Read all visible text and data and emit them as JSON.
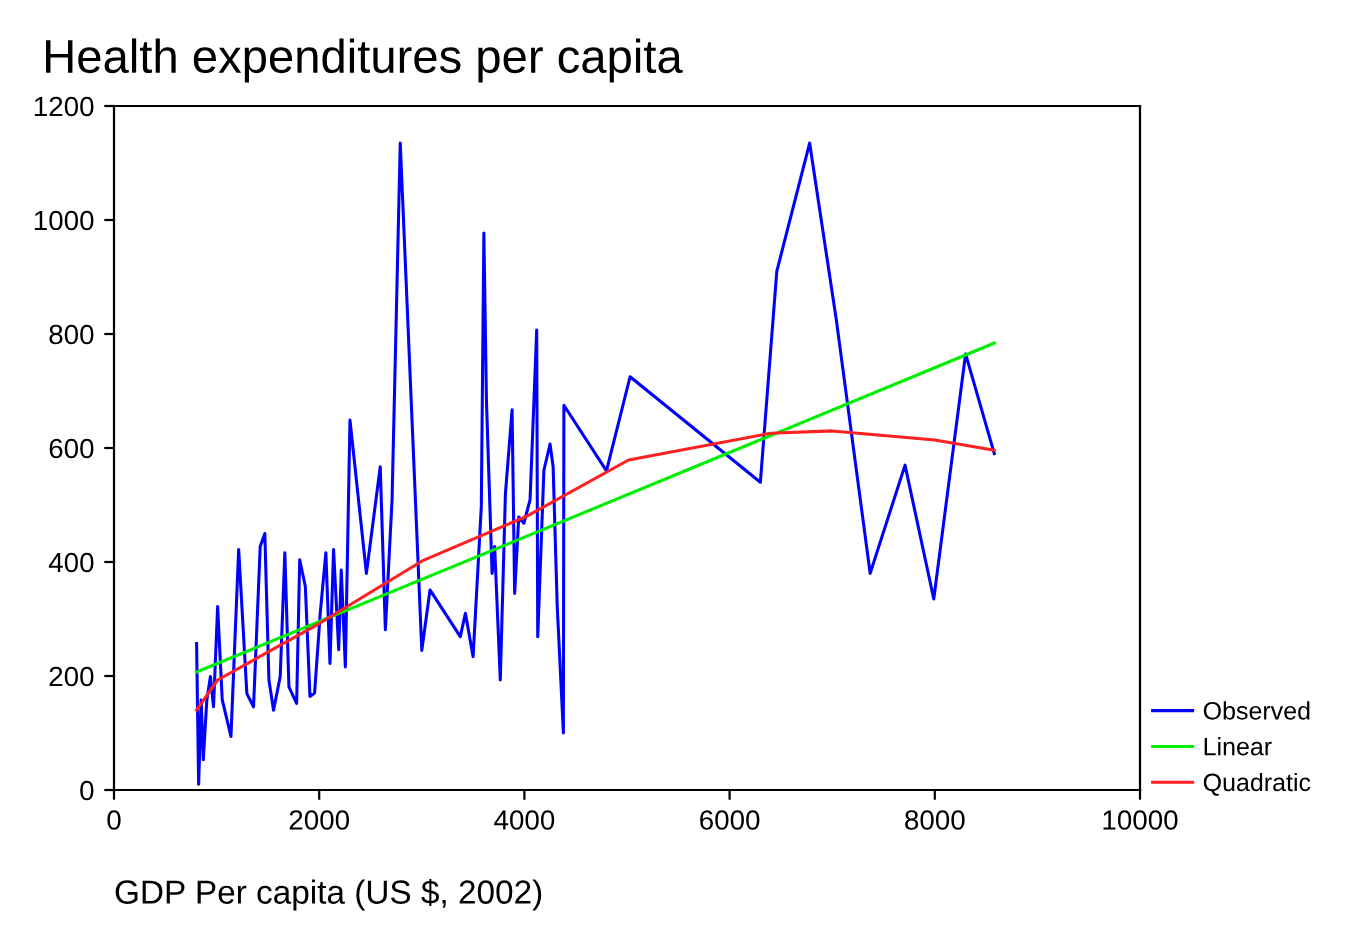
{
  "chart_data": {
    "type": "line",
    "title": "Health expenditures per capita",
    "xlabel": "GDP Per capita (US $, 2002)",
    "xlim": [
      0,
      10000
    ],
    "xticks": [
      0,
      2000,
      4000,
      6000,
      8000,
      10000
    ],
    "ylim": [
      0,
      1200
    ],
    "yticks": [
      0,
      200,
      400,
      600,
      800,
      1000,
      1200
    ],
    "grid": false,
    "legend": "bottom right",
    "marker": "none",
    "line_style": "solid",
    "series": [
      {
        "name": "Observed",
        "color": "#0000ff",
        "x": [
          805,
          825,
          850,
          870,
          905,
          940,
          970,
          1010,
          1055,
          1140,
          1215,
          1295,
          1360,
          1425,
          1470,
          1510,
          1555,
          1620,
          1665,
          1705,
          1780,
          1810,
          1865,
          1910,
          1955,
          2010,
          2065,
          2105,
          2140,
          2190,
          2215,
          2255,
          2300,
          2460,
          2595,
          2645,
          2710,
          2790,
          3000,
          3080,
          3375,
          3425,
          3500,
          3580,
          3605,
          3630,
          3685,
          3710,
          3765,
          3815,
          3880,
          3905,
          3945,
          3995,
          4055,
          4120,
          4130,
          4190,
          4250,
          4280,
          4320,
          4380,
          4385,
          4800,
          5030,
          6300,
          6460,
          6780,
          7040,
          7370,
          7710,
          7990,
          8300,
          8580
        ],
        "values": [
          257,
          10,
          158,
          53,
          158,
          199,
          146,
          322,
          158,
          94,
          422,
          169,
          146,
          427,
          450,
          193,
          140,
          199,
          416,
          181,
          152,
          404,
          357,
          164,
          170,
          310,
          416,
          222,
          422,
          246,
          386,
          216,
          649,
          380,
          567,
          281,
          509,
          1135,
          245,
          351,
          269,
          310,
          234,
          497,
          977,
          684,
          380,
          427,
          193,
          520,
          667,
          345,
          479,
          468,
          509,
          807,
          269,
          561,
          607,
          567,
          322,
          100,
          675,
          560,
          725,
          540,
          910,
          1135,
          825,
          380,
          570,
          335,
          765,
          590
        ]
      },
      {
        "name": "Linear",
        "color": "#00ee00",
        "x": [
          805,
          4020,
          8580
        ],
        "values": [
          207,
          445,
          784
        ]
      },
      {
        "name": "Quadratic",
        "color": "#ff2020",
        "x": [
          805,
          1010,
          2000,
          3015,
          4020,
          5015,
          6400,
          7000,
          8000,
          8580
        ],
        "values": [
          140,
          193,
          292,
          403,
          480,
          579,
          626,
          630,
          614,
          596
        ]
      }
    ]
  }
}
